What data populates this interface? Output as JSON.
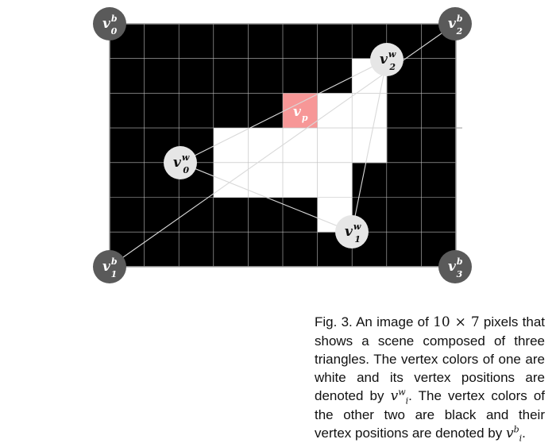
{
  "grid": {
    "cols": 10,
    "rows": 7,
    "background": "#000000",
    "gridline": "#bdbdbd",
    "fill": "#ffffff",
    "highlight": "#f79797"
  },
  "filled_cells": [
    {
      "col": 7,
      "row": 1
    },
    {
      "col": 7,
      "row": 2
    },
    {
      "col": 7,
      "row": 3
    },
    {
      "col": 5,
      "row": 2
    },
    {
      "col": 6,
      "row": 2
    },
    {
      "col": 3,
      "row": 3
    },
    {
      "col": 4,
      "row": 3
    },
    {
      "col": 5,
      "row": 3
    },
    {
      "col": 6,
      "row": 3
    },
    {
      "col": 3,
      "row": 4
    },
    {
      "col": 4,
      "row": 4
    },
    {
      "col": 5,
      "row": 4
    },
    {
      "col": 6,
      "row": 4
    },
    {
      "col": 6,
      "row": 5
    }
  ],
  "highlight_cell": {
    "col": 5,
    "row": 2
  },
  "vertices": {
    "v0b": {
      "base": "v",
      "sup": "b",
      "sub": "0",
      "color": "#5a5a5a"
    },
    "v1b": {
      "base": "v",
      "sup": "b",
      "sub": "1",
      "color": "#5a5a5a"
    },
    "v2b": {
      "base": "v",
      "sup": "b",
      "sub": "2",
      "color": "#5a5a5a"
    },
    "v3b": {
      "base": "v",
      "sup": "b",
      "sub": "3",
      "color": "#5a5a5a"
    },
    "v0w": {
      "base": "v",
      "sup": "w",
      "sub": "0",
      "color": "#e6e6e6"
    },
    "v1w": {
      "base": "v",
      "sup": "w",
      "sub": "1",
      "color": "#e6e6e6"
    },
    "v2w": {
      "base": "v",
      "sup": "w",
      "sub": "2",
      "color": "#e6e6e6"
    },
    "vp": {
      "base": "v",
      "sub": "p"
    }
  },
  "caption": {
    "p1": "Fig. 3. An image of ",
    "m1": "10",
    "times": " × ",
    "m2": "7",
    "p2": " pixels that shows a scene composed of three triangles. The vertex colors of one are white and its vertex positions are denoted by ",
    "v1_base": "v",
    "v1_sup": "w",
    "v1_sub": "i",
    "p3": ". The vertex colors of the other two are black and their vertex positions are denoted by ",
    "v2_base": "v",
    "v2_sup": "b",
    "v2_sub": "i",
    "p4": "."
  }
}
